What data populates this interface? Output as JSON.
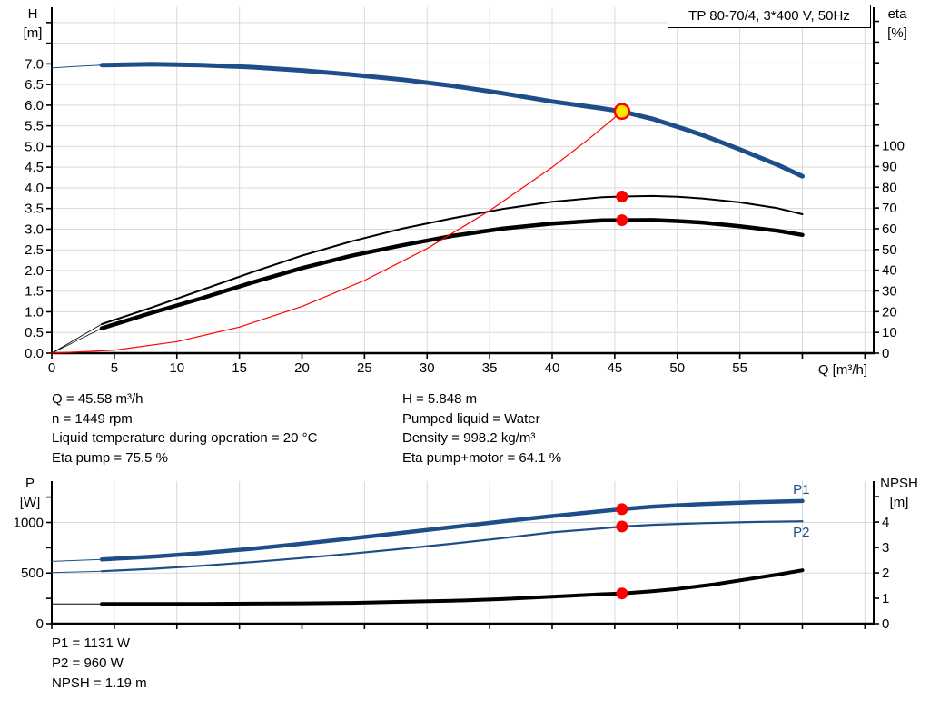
{
  "colors": {
    "blue": "#1d4e89",
    "black": "#000000",
    "red": "#ff0000",
    "duty_fill": "#ffe600",
    "grid": "#d9d9d9",
    "axis": "#000000"
  },
  "info_top": {
    "left": [
      "Q = 45.58 m³/h",
      "n = 1449 rpm",
      "Liquid temperature during operation = 20 °C",
      "Eta pump = 75.5 %"
    ],
    "right": [
      "H = 5.848 m",
      "Pumped liquid = Water",
      "Density = 998.2 kg/m³",
      "Eta pump+motor = 64.1 %"
    ]
  },
  "info_bottom": [
    "P1 = 1131 W",
    "P2 = 960 W",
    "NPSH = 1.19 m"
  ],
  "chart_data": [
    {
      "type": "line",
      "title": "TP 80-70/4, 3*400 V, 50Hz",
      "xlabel": "Q [m³/h]",
      "x_axis": {
        "name": "q",
        "min": 0,
        "max": 65.7,
        "tick_step": 5,
        "labeled_max": 55
      },
      "left_axis": {
        "name": "h",
        "label": [
          "H",
          "[m]"
        ],
        "min": 0,
        "max": 8.37,
        "tick_step": 0.5,
        "label_max": 7,
        "label_decimals": 1
      },
      "right_axis": {
        "name": "eta",
        "label": [
          "eta",
          "[%]"
        ],
        "min": 0,
        "max": 166.8,
        "tick_step": 10,
        "label_max": 100
      },
      "grid": {
        "x_step": 5,
        "y_left_step": 0.5
      },
      "series": [
        {
          "name": "h-curve",
          "axis": "left",
          "color_key": "blue",
          "width": 5,
          "thin_width": 1,
          "bold_from": 4,
          "points": [
            [
              0,
              6.9
            ],
            [
              2,
              6.94
            ],
            [
              4,
              6.97
            ],
            [
              8,
              6.99
            ],
            [
              12,
              6.97
            ],
            [
              16,
              6.92
            ],
            [
              20,
              6.84
            ],
            [
              24,
              6.74
            ],
            [
              28,
              6.62
            ],
            [
              32,
              6.47
            ],
            [
              36,
              6.29
            ],
            [
              40,
              6.09
            ],
            [
              44,
              5.92
            ],
            [
              45.58,
              5.848
            ],
            [
              48,
              5.67
            ],
            [
              50,
              5.48
            ],
            [
              52,
              5.28
            ],
            [
              55,
              4.93
            ],
            [
              58,
              4.56
            ],
            [
              60,
              4.28
            ]
          ]
        },
        {
          "name": "eta-pump-curve",
          "axis": "right",
          "color_key": "black",
          "width": 2,
          "thin_width": 0.8,
          "bold_from": 4,
          "points": [
            [
              0,
              0
            ],
            [
              2,
              7
            ],
            [
              4,
              14
            ],
            [
              8,
              22
            ],
            [
              12,
              30.5
            ],
            [
              16,
              39
            ],
            [
              20,
              47
            ],
            [
              24,
              54
            ],
            [
              28,
              60
            ],
            [
              32,
              65
            ],
            [
              36,
              69.5
            ],
            [
              40,
              73
            ],
            [
              44,
              75.2
            ],
            [
              45.58,
              75.5
            ],
            [
              48,
              75.8
            ],
            [
              50,
              75.4
            ],
            [
              52,
              74.6
            ],
            [
              55,
              72.7
            ],
            [
              58,
              69.9
            ],
            [
              60,
              67
            ]
          ]
        },
        {
          "name": "eta-pump-motor-curve",
          "axis": "right",
          "color_key": "black",
          "width": 4.5,
          "thin_width": 0.8,
          "bold_from": 4,
          "points": [
            [
              0,
              0
            ],
            [
              2,
              6
            ],
            [
              4,
              12
            ],
            [
              8,
              19.5
            ],
            [
              12,
              26.5
            ],
            [
              16,
              34
            ],
            [
              20,
              41
            ],
            [
              24,
              47
            ],
            [
              28,
              52
            ],
            [
              32,
              56.5
            ],
            [
              36,
              60
            ],
            [
              40,
              62.5
            ],
            [
              44,
              64
            ],
            [
              45.58,
              64.1
            ],
            [
              48,
              64.2
            ],
            [
              50,
              63.7
            ],
            [
              52,
              63
            ],
            [
              55,
              61.2
            ],
            [
              58,
              59
            ],
            [
              60,
              57
            ]
          ]
        },
        {
          "name": "system-curve",
          "axis": "left",
          "color_key": "red",
          "width": 1.2,
          "points": [
            [
              0,
              0
            ],
            [
              5,
              0.07
            ],
            [
              10,
              0.28
            ],
            [
              15,
              0.63
            ],
            [
              20,
              1.13
            ],
            [
              25,
              1.76
            ],
            [
              30,
              2.53
            ],
            [
              35,
              3.45
            ],
            [
              40,
              4.5
            ],
            [
              43,
              5.2
            ],
            [
              45.58,
              5.848
            ]
          ]
        }
      ],
      "markers": [
        {
          "kind": "duty",
          "x": 45.58,
          "value": 5.848,
          "axis": "left"
        },
        {
          "kind": "dot",
          "x": 45.58,
          "value": 75.5,
          "axis": "right"
        },
        {
          "kind": "dot",
          "x": 45.58,
          "value": 64.1,
          "axis": "right"
        }
      ]
    },
    {
      "type": "line",
      "title": "",
      "xlabel": "",
      "x_axis": {
        "name": "q2",
        "min": 0,
        "max": 65.7,
        "tick_step": 5,
        "labeled_max": -1
      },
      "left_axis": {
        "name": "p",
        "label": [
          "P",
          "[W]"
        ],
        "min": 0,
        "max": 1408,
        "tick_step": 250,
        "label_step": 500,
        "label_max": 1000,
        "label_decimals": 0
      },
      "right_axis": {
        "name": "npsh",
        "label": [
          "NPSH",
          "[m]"
        ],
        "min": 0,
        "max": 5.61,
        "tick_step": 1,
        "label_max": 4
      },
      "grid": {
        "x_step": 5,
        "y_left_step": 500
      },
      "series": [
        {
          "name": "p1-curve",
          "axis": "left",
          "color_key": "blue",
          "width": 4.5,
          "thin_width": 1,
          "bold_from": 4,
          "end_label": "P1",
          "label_dy": -8,
          "points": [
            [
              0,
              615
            ],
            [
              4,
              635
            ],
            [
              8,
              662
            ],
            [
              12,
              698
            ],
            [
              16,
              740
            ],
            [
              20,
              790
            ],
            [
              24,
              843
            ],
            [
              28,
              898
            ],
            [
              32,
              954
            ],
            [
              36,
              1010
            ],
            [
              40,
              1063
            ],
            [
              44,
              1112
            ],
            [
              45.58,
              1131
            ],
            [
              48,
              1156
            ],
            [
              52,
              1182
            ],
            [
              56,
              1200
            ],
            [
              60,
              1212
            ]
          ]
        },
        {
          "name": "p2-curve",
          "axis": "left",
          "color_key": "blue",
          "width": 2.2,
          "thin_width": 1,
          "bold_from": 4,
          "end_label": "P2",
          "label_dy": 17,
          "points": [
            [
              0,
              505
            ],
            [
              4,
              518
            ],
            [
              8,
              542
            ],
            [
              12,
              572
            ],
            [
              16,
              608
            ],
            [
              20,
              648
            ],
            [
              24,
              692
            ],
            [
              28,
              740
            ],
            [
              32,
              790
            ],
            [
              36,
              845
            ],
            [
              40,
              902
            ],
            [
              44,
              942
            ],
            [
              45.58,
              960
            ],
            [
              48,
              977
            ],
            [
              52,
              993
            ],
            [
              56,
              1004
            ],
            [
              60,
              1012
            ]
          ]
        },
        {
          "name": "npsh-curve",
          "axis": "right",
          "color_key": "black",
          "width": 4,
          "thin_width": 1,
          "bold_from": 4,
          "points": [
            [
              0,
              0.78
            ],
            [
              4,
              0.78
            ],
            [
              8,
              0.78
            ],
            [
              12,
              0.78
            ],
            [
              16,
              0.79
            ],
            [
              20,
              0.8
            ],
            [
              24,
              0.82
            ],
            [
              28,
              0.86
            ],
            [
              32,
              0.9
            ],
            [
              36,
              0.97
            ],
            [
              40,
              1.06
            ],
            [
              44,
              1.16
            ],
            [
              45.58,
              1.19
            ],
            [
              48,
              1.28
            ],
            [
              50,
              1.37
            ],
            [
              53,
              1.55
            ],
            [
              56,
              1.78
            ],
            [
              58,
              1.93
            ],
            [
              60,
              2.1
            ]
          ]
        }
      ],
      "markers": [
        {
          "kind": "dot",
          "x": 45.58,
          "value": 1131,
          "axis": "left"
        },
        {
          "kind": "dot",
          "x": 45.58,
          "value": 960,
          "axis": "left"
        },
        {
          "kind": "dot",
          "x": 45.58,
          "value": 1.19,
          "axis": "right"
        }
      ]
    }
  ]
}
